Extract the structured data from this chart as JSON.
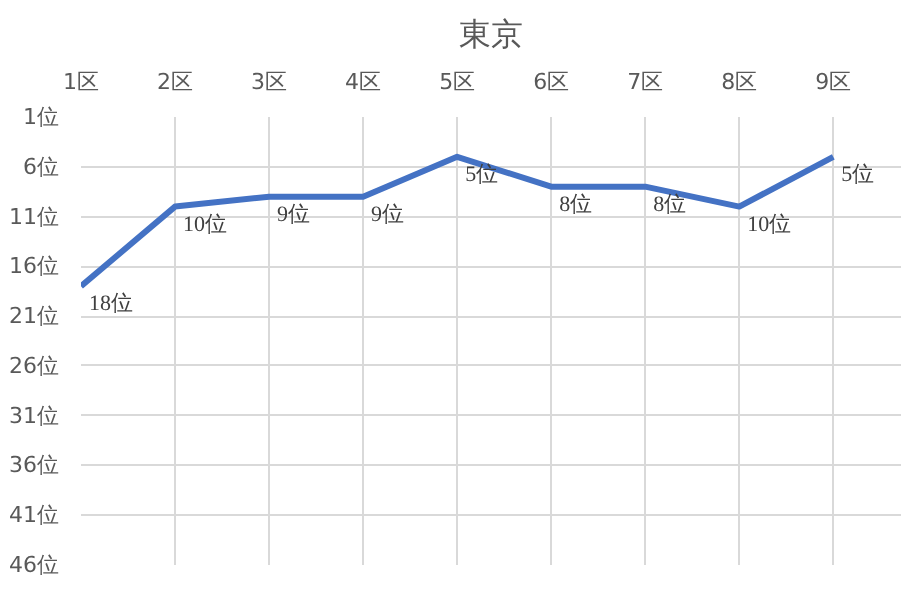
{
  "chart_data": {
    "type": "line",
    "title": "東京",
    "categories": [
      "1区",
      "2区",
      "3区",
      "4区",
      "5区",
      "6区",
      "7区",
      "8区",
      "9区"
    ],
    "series": [
      {
        "color": "#4472c4",
        "values": [
          18,
          10,
          9,
          9,
          5,
          8,
          8,
          10,
          5
        ],
        "value_labels": [
          "18位",
          "10位",
          "9位",
          "9位",
          "5位",
          "8位",
          "8位",
          "10位",
          "5位"
        ]
      }
    ],
    "ylim": [
      46,
      1
    ],
    "yticks": [
      {
        "value": 1,
        "label": "1位"
      },
      {
        "value": 6,
        "label": "6位"
      },
      {
        "value": 11,
        "label": "11位"
      },
      {
        "value": 16,
        "label": "16位"
      },
      {
        "value": 21,
        "label": "21位"
      },
      {
        "value": 26,
        "label": "26位"
      },
      {
        "value": 31,
        "label": "31位"
      },
      {
        "value": 36,
        "label": "36位"
      },
      {
        "value": 41,
        "label": "41位"
      },
      {
        "value": 46,
        "label": "46位"
      }
    ],
    "grid": true,
    "marker": "none",
    "line_style": "solid"
  }
}
